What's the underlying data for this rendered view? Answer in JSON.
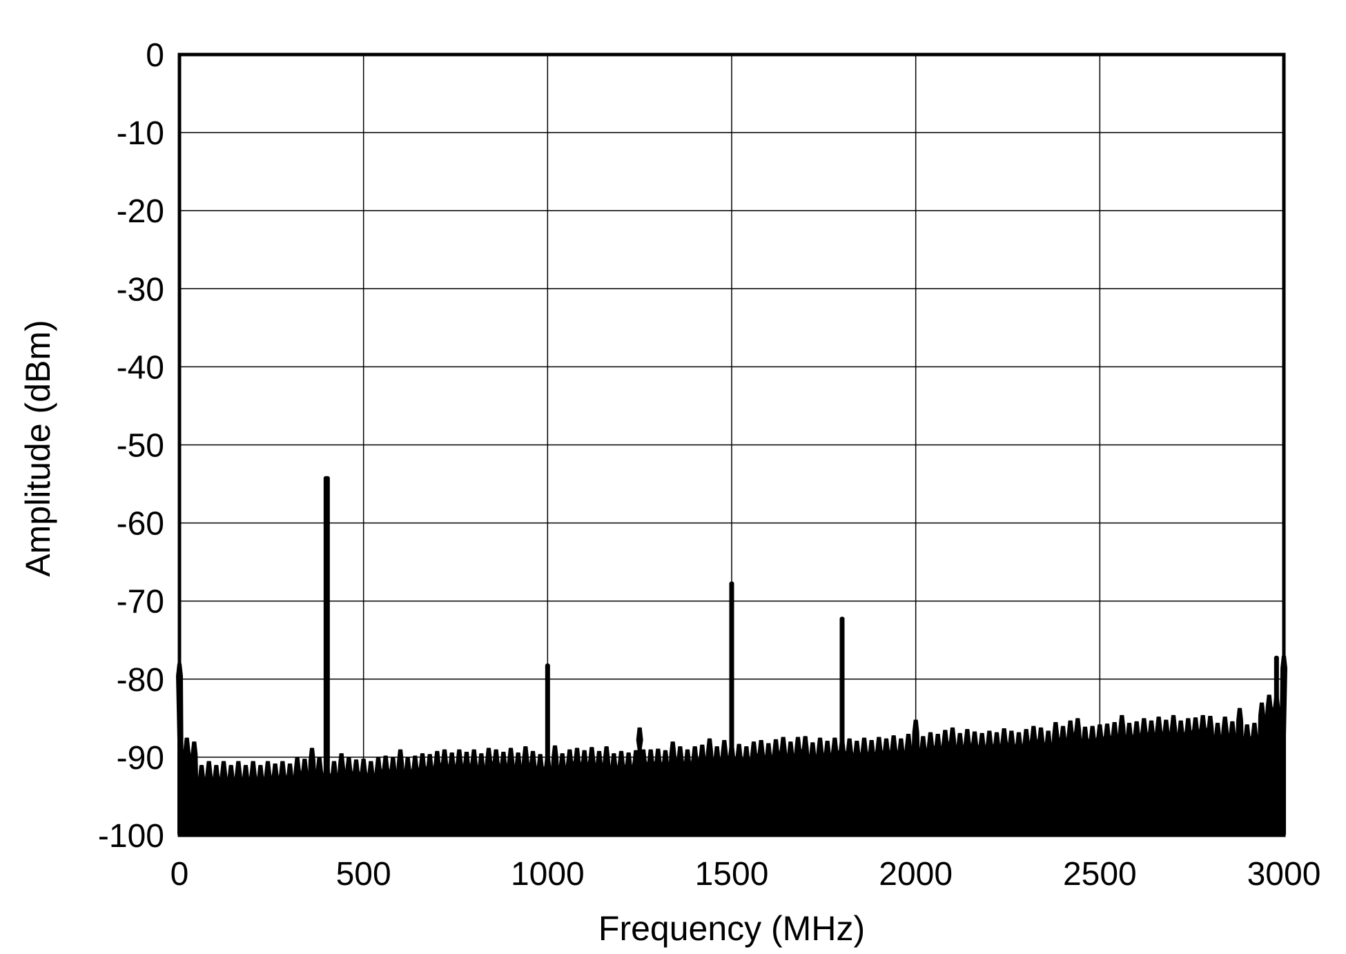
{
  "chart_data": {
    "type": "area",
    "title": "",
    "xlabel": "Frequency (MHz)",
    "ylabel": "Amplitude (dBm)",
    "xlim": [
      0,
      3000
    ],
    "ylim": [
      -100,
      0
    ],
    "xticks": [
      "0",
      "500",
      "1000",
      "1500",
      "2000",
      "2500",
      "3000"
    ],
    "yticks": [
      "0",
      "-10",
      "-20",
      "-30",
      "-40",
      "-50",
      "-60",
      "-70",
      "-80",
      "-90",
      "-100"
    ],
    "grid": true,
    "color": "#000000",
    "series": [
      {
        "x": [
          0,
          20,
          40,
          60,
          80,
          100,
          120,
          140,
          160,
          180,
          200,
          220,
          240,
          260,
          280,
          300,
          320,
          340,
          360,
          380,
          400,
          420,
          440,
          460,
          480,
          500,
          520,
          540,
          560,
          580,
          600,
          620,
          640,
          660,
          680,
          700,
          720,
          740,
          760,
          780,
          800,
          820,
          840,
          860,
          880,
          900,
          920,
          940,
          960,
          980,
          1000,
          1020,
          1040,
          1060,
          1080,
          1100,
          1120,
          1140,
          1160,
          1180,
          1200,
          1220,
          1240,
          1250,
          1260,
          1280,
          1300,
          1320,
          1340,
          1360,
          1380,
          1400,
          1420,
          1440,
          1460,
          1480,
          1500,
          1520,
          1540,
          1560,
          1580,
          1600,
          1620,
          1640,
          1660,
          1680,
          1700,
          1720,
          1740,
          1760,
          1780,
          1800,
          1820,
          1840,
          1860,
          1880,
          1900,
          1920,
          1940,
          1960,
          1980,
          2000,
          2020,
          2040,
          2060,
          2080,
          2100,
          2120,
          2140,
          2160,
          2180,
          2200,
          2220,
          2240,
          2260,
          2280,
          2300,
          2320,
          2340,
          2360,
          2380,
          2400,
          2420,
          2440,
          2460,
          2480,
          2500,
          2520,
          2540,
          2560,
          2580,
          2600,
          2620,
          2640,
          2660,
          2680,
          2700,
          2720,
          2740,
          2760,
          2780,
          2800,
          2820,
          2840,
          2860,
          2880,
          2900,
          2920,
          2940,
          2960,
          2980,
          3000
        ],
        "y": [
          -78,
          -87.5,
          -88,
          -91,
          -90.5,
          -91,
          -90.5,
          -91,
          -90.5,
          -91,
          -90.5,
          -91,
          -90.5,
          -90.8,
          -90.5,
          -90.8,
          -90,
          -90.2,
          -88.8,
          -90,
          -54,
          -90.5,
          -89.5,
          -90,
          -90.3,
          -90.2,
          -90.5,
          -90,
          -89.8,
          -90,
          -89,
          -90,
          -89.8,
          -89.5,
          -89.6,
          -89.2,
          -89,
          -89.4,
          -89,
          -89.3,
          -89,
          -89.5,
          -88.8,
          -89,
          -89.3,
          -88.8,
          -89.4,
          -88.6,
          -89.2,
          -89.6,
          -78,
          -88.5,
          -89.5,
          -89,
          -88.8,
          -89.1,
          -88.7,
          -89.2,
          -88.6,
          -89.5,
          -89.2,
          -89.4,
          -89.1,
          -86.2,
          -89,
          -89,
          -88.9,
          -89.1,
          -88,
          -88.6,
          -89,
          -88.6,
          -88.4,
          -87.6,
          -88.6,
          -87.8,
          -67.5,
          -88.3,
          -88.6,
          -88,
          -87.8,
          -88.2,
          -87.7,
          -87.4,
          -88,
          -87.4,
          -87.3,
          -88.1,
          -87.5,
          -87.9,
          -87.5,
          -72,
          -87.6,
          -87.9,
          -87.5,
          -87.8,
          -87.4,
          -87.6,
          -87.2,
          -87.6,
          -87,
          -85.2,
          -87.3,
          -86.8,
          -87,
          -86.5,
          -86.2,
          -86.9,
          -86.4,
          -86.7,
          -86.9,
          -86.6,
          -86.8,
          -86.3,
          -86.6,
          -86.8,
          -86.4,
          -86,
          -86.2,
          -86.6,
          -85.5,
          -86,
          -85.3,
          -85,
          -86.1,
          -86,
          -85.8,
          -85.7,
          -85.5,
          -84.6,
          -85.6,
          -85.4,
          -85,
          -85.3,
          -84.8,
          -85.2,
          -84.6,
          -85.3,
          -85,
          -84.9,
          -84.6,
          -84.7,
          -85.6,
          -84.8,
          -85.4,
          -83.7,
          -85.8,
          -85.6,
          -83,
          -82,
          -77,
          -77
        ]
      }
    ]
  }
}
